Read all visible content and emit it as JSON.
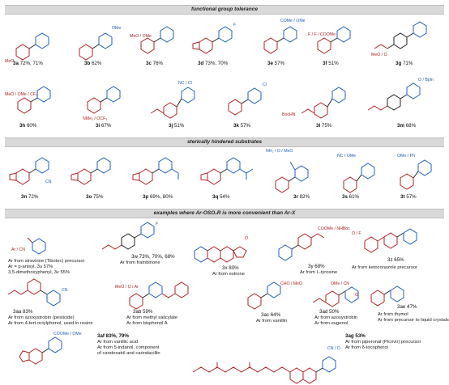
{
  "sections": {
    "s1": "functional group tolerance",
    "s2": "sterically hindered substrates",
    "s3": "examples where Ar-OSO₂R is more convenient than Ar-X"
  },
  "colors": {
    "red": "#b22222",
    "blue": "#1f5fbf",
    "black": "#222222"
  },
  "row1": [
    {
      "id": "3a",
      "yield": "72%, 71%",
      "sub": "MeO"
    },
    {
      "id": "3b",
      "yield": "62%",
      "sub": "OMe"
    },
    {
      "id": "3c",
      "yield": "76%",
      "sub": "MeO / OMe"
    },
    {
      "id": "3d",
      "yield": "73%, 70%",
      "sub": "F"
    },
    {
      "id": "3e",
      "yield": "57%",
      "sub": "COMe / OMe"
    },
    {
      "id": "3f",
      "yield": "51%",
      "sub": "F / F / COOMe"
    },
    {
      "id": "3g",
      "yield": "71%",
      "sub": "MeO / O"
    }
  ],
  "row2": [
    {
      "id": "3h",
      "yield": "60%",
      "sub": "MeO / OMe / CF₃"
    },
    {
      "id": "3i",
      "yield": "67%",
      "sub": "NMe₂ / OCF₃"
    },
    {
      "id": "3j",
      "yield": "51%",
      "sub": "NC / Cl"
    },
    {
      "id": "3k",
      "yield": "57%",
      "sub": "Cl"
    },
    {
      "id": "3l",
      "yield": "75%",
      "sub": "BocHN"
    },
    {
      "id": "3m",
      "yield": "68%",
      "sub": "O / Bpin"
    }
  ],
  "row3": [
    {
      "id": "3n",
      "yield": "72%",
      "sub": "CN"
    },
    {
      "id": "3o",
      "yield": "75%",
      "sub": ""
    },
    {
      "id": "3p",
      "yield": "69%, 80%",
      "sub": ""
    },
    {
      "id": "3q",
      "yield": "54%",
      "sub": ""
    },
    {
      "id": "3r",
      "yield": "82%",
      "sub": "NH₂ / O / MeO"
    },
    {
      "id": "3s",
      "yield": "61%",
      "sub": "NC / OMe"
    },
    {
      "id": "3t",
      "yield": "57%",
      "sub": "OMe / Ph"
    }
  ],
  "row4": {
    "s3u": {
      "sub": "Ar / CN",
      "notes": [
        "Ar from stravirine (Tibotec) precursor",
        "Ar = p-anisyl, 3u 57%",
        "3,5-dimethoxyphenyl, 3v 55%"
      ]
    },
    "s3w": {
      "lbl": "3w 73%, 70%, 68%",
      "note": "Ar from frambinone",
      "sub": "F"
    },
    "s3x": {
      "lbl": "3x 80%",
      "note": "Ar from estrone",
      "sub": "O"
    },
    "s3y": {
      "lbl": "3y 68%",
      "note": "Ar from L-tyrosine",
      "sub": "COOMe / NHBoc"
    },
    "s3z": {
      "lbl": "3z 65%",
      "note": "Ar from ketoconazole precursor",
      "sub": "O / F"
    }
  },
  "row5": {
    "s3aa": {
      "lbl": "3aa 83%",
      "notes": [
        "Ar from azoxystrobin (pesticide)",
        "Ar from 4-tert-octylphenol, used in resins"
      ],
      "sub": "CN"
    },
    "s3ab": {
      "lbl": "3ab 59%",
      "notes": [
        "Ar from methyl salicylate",
        "Ar from bisphenol A"
      ],
      "sub": "MeO / O / Ar"
    },
    "s3ac": {
      "lbl": "3ac 64%",
      "note": "Ar from vanillin",
      "sub": "CHO / MeO"
    },
    "s3ad": {
      "lbl": "3ad 50%",
      "notes": [
        "Ar from azoxystrobin",
        "Ar from eugenol"
      ],
      "sub": "OMe / CN"
    },
    "s3ae": {
      "lbl": "3ae 47%",
      "notes": [
        "Ar from thymol",
        "Ar from precursor to liquid crystals"
      ],
      "sub": "O"
    }
  },
  "row6": {
    "s3af": {
      "lbl": "3af 83%, 79%",
      "notes": [
        "Ar from vanillic acid",
        "Ar from 5-indanol, component",
        "of candoxatril and carindacillin"
      ],
      "sub": "COOMe / OMe"
    },
    "s3ag": {
      "lbl": "3ag 53%",
      "notes": [
        "Ar from piperonal (Picovir) precursor",
        "Ar from δ-tocopherol"
      ],
      "sub": "CN / O"
    }
  }
}
